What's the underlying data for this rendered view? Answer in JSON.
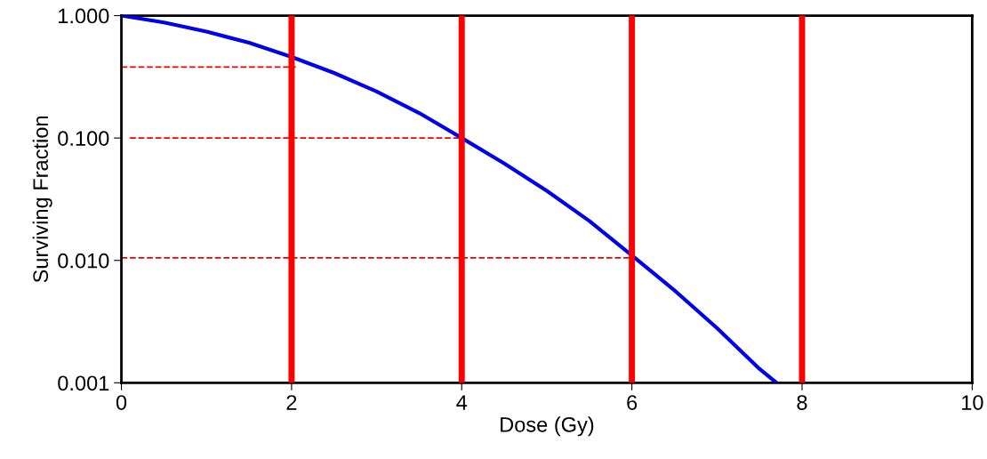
{
  "chart_data": {
    "type": "line",
    "xlabel": "Dose (Gy)",
    "ylabel": "Surviving Fraction",
    "log": "y",
    "xlim": [
      0,
      10
    ],
    "xticks": [
      0,
      2,
      4,
      6,
      8,
      10
    ],
    "ylim": [
      0.001,
      1
    ],
    "yticks": [
      {
        "value": 0.001,
        "label": "0.001"
      },
      {
        "value": 0.01,
        "label": "0.010"
      },
      {
        "value": 0.1,
        "label": "0.100"
      },
      {
        "value": 1,
        "label": "1.000"
      }
    ],
    "grid": false,
    "legend": false,
    "marker": "none",
    "series": [
      {
        "color": "#0000ee",
        "line_style": "solid",
        "x": [
          0,
          0.5,
          1,
          1.5,
          2,
          2.5,
          3,
          3.5,
          4,
          4.5,
          5,
          5.5,
          6,
          6.5,
          7,
          7.5,
          7.7
        ],
        "values": [
          1,
          0.88,
          0.74,
          0.6,
          0.46,
          0.34,
          0.24,
          0.16,
          0.1,
          0.062,
          0.037,
          0.021,
          0.011,
          0.0057,
          0.0028,
          0.0013,
          0.001
        ]
      },
      {
        "color": "#ee0000",
        "line_style": "dashed",
        "x": [
          0,
          2.05
        ],
        "values": [
          0.38,
          0.38
        ]
      },
      {
        "color": "#ee0000",
        "line_style": "dashed",
        "x": [
          0.1,
          4
        ],
        "values": [
          0.1,
          0.1
        ]
      },
      {
        "color": "#ee0000",
        "line_style": "dashed",
        "x": [
          0,
          6
        ],
        "values": [
          0.0105,
          0.0105
        ]
      }
    ],
    "ref_lines": [
      {
        "axis": "x",
        "value": 2,
        "color": "#ff0000"
      },
      {
        "axis": "x",
        "value": 4,
        "color": "#ff0000"
      },
      {
        "axis": "x",
        "value": 6,
        "color": "#ff0000"
      },
      {
        "axis": "x",
        "value": 8,
        "color": "#ff0000"
      }
    ]
  }
}
